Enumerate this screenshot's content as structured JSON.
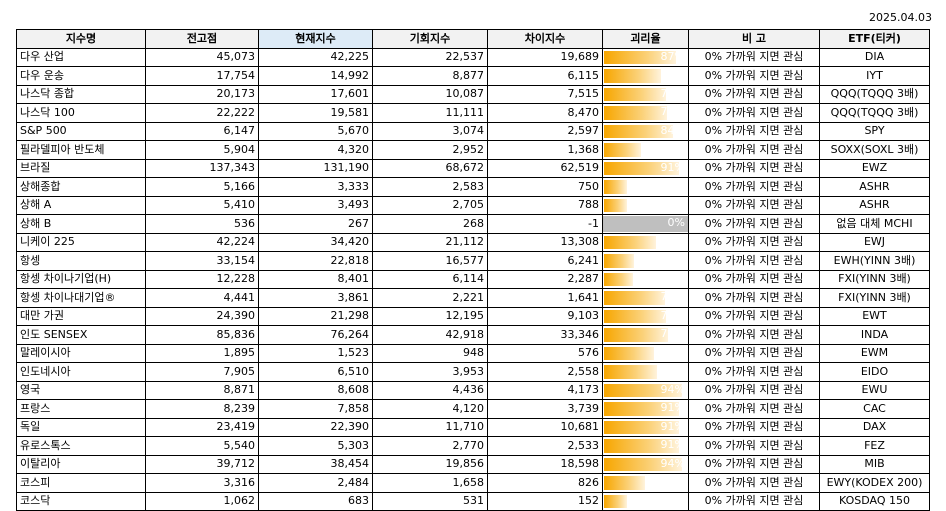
{
  "date": "2025.04.03",
  "headers": [
    "지수명",
    "전고점",
    "현재지수",
    "기회지수",
    "차이지수",
    "괴리율",
    "비 고",
    "ETF(티커)"
  ],
  "rows": [
    {
      "name": "다우 산업",
      "prev_high": "45,073",
      "current": "42,225",
      "opportunity": "22,537",
      "diff": "19,689",
      "gap": "87%",
      "gap_value": 0.87,
      "note": "0% 가까워 지면 관심",
      "etf": "DIA"
    },
    {
      "name": "다우 운송",
      "prev_high": "17,754",
      "current": "14,992",
      "opportunity": "8,877",
      "diff": "6,115",
      "gap": "69%",
      "gap_value": 0.69,
      "note": "0% 가까워 지면 관심",
      "etf": "IYT"
    },
    {
      "name": "나스닥 종합",
      "prev_high": "20,173",
      "current": "17,601",
      "opportunity": "10,087",
      "diff": "7,515",
      "gap": "75%",
      "gap_value": 0.75,
      "note": "0% 가까워 지면 관심",
      "etf": "QQQ(TQQQ 3배)"
    },
    {
      "name": "나스닥 100",
      "prev_high": "22,222",
      "current": "19,581",
      "opportunity": "11,111",
      "diff": "8,470",
      "gap": "76%",
      "gap_value": 0.76,
      "note": "0% 가까워 지면 관심",
      "etf": "QQQ(TQQQ 3배)"
    },
    {
      "name": "S&P 500",
      "prev_high": "6,147",
      "current": "5,670",
      "opportunity": "3,074",
      "diff": "2,597",
      "gap": "84%",
      "gap_value": 0.84,
      "note": "0% 가까워 지면 관심",
      "etf": "SPY"
    },
    {
      "name": "필라델피아 반도체",
      "prev_high": "5,904",
      "current": "4,320",
      "opportunity": "2,952",
      "diff": "1,368",
      "gap": "46%",
      "gap_value": 0.46,
      "note": "0% 가까워 지면 관심",
      "etf": "SOXX(SOXL 3배)"
    },
    {
      "name": "브라질",
      "prev_high": "137,343",
      "current": "131,190",
      "opportunity": "68,672",
      "diff": "62,519",
      "gap": "91%",
      "gap_value": 0.91,
      "note": "0% 가까워 지면 관심",
      "etf": "EWZ"
    },
    {
      "name": "상해종합",
      "prev_high": "5,166",
      "current": "3,333",
      "opportunity": "2,583",
      "diff": "750",
      "gap": "29%",
      "gap_value": 0.29,
      "note": "0% 가까워 지면 관심",
      "etf": "ASHR"
    },
    {
      "name": "상해 A",
      "prev_high": "5,410",
      "current": "3,493",
      "opportunity": "2,705",
      "diff": "788",
      "gap": "29%",
      "gap_value": 0.29,
      "note": "0% 가까워 지면 관심",
      "etf": "ASHR"
    },
    {
      "name": "상해 B",
      "prev_high": "536",
      "current": "267",
      "opportunity": "268",
      "diff": "-1",
      "gap": "0%",
      "gap_value": 0,
      "note": "0% 가까워 지면 관심",
      "etf": "없음 대체 MCHI"
    },
    {
      "name": "니케이 225",
      "prev_high": "42,224",
      "current": "34,420",
      "opportunity": "21,112",
      "diff": "13,308",
      "gap": "63%",
      "gap_value": 0.63,
      "note": "0% 가까워 지면 관심",
      "etf": "EWJ"
    },
    {
      "name": "항셍",
      "prev_high": "33,154",
      "current": "22,818",
      "opportunity": "16,577",
      "diff": "6,241",
      "gap": "38%",
      "gap_value": 0.38,
      "note": "0% 가까워 지면 관심",
      "etf": "EWH(YINN 3배)"
    },
    {
      "name": "항셍 차이나기업(H)",
      "prev_high": "12,228",
      "current": "8,401",
      "opportunity": "6,114",
      "diff": "2,287",
      "gap": "37%",
      "gap_value": 0.37,
      "note": "0% 가까워 지면 관심",
      "etf": "FXI(YINN 3배)"
    },
    {
      "name": "항셍 차이나대기업®",
      "prev_high": "4,441",
      "current": "3,861",
      "opportunity": "2,221",
      "diff": "1,641",
      "gap": "74%",
      "gap_value": 0.74,
      "note": "0% 가까워 지면 관심",
      "etf": "FXI(YINN 3배)"
    },
    {
      "name": "대만 가권",
      "prev_high": "24,390",
      "current": "21,298",
      "opportunity": "12,195",
      "diff": "9,103",
      "gap": "75%",
      "gap_value": 0.75,
      "note": "0% 가까워 지면 관심",
      "etf": "EWT"
    },
    {
      "name": "인도 SENSEX",
      "prev_high": "85,836",
      "current": "76,264",
      "opportunity": "42,918",
      "diff": "33,346",
      "gap": "78%",
      "gap_value": 0.78,
      "note": "0% 가까워 지면 관심",
      "etf": "INDA"
    },
    {
      "name": "말레이시아",
      "prev_high": "1,895",
      "current": "1,523",
      "opportunity": "948",
      "diff": "576",
      "gap": "61%",
      "gap_value": 0.61,
      "note": "0% 가까워 지면 관심",
      "etf": "EWM"
    },
    {
      "name": "인도네시아",
      "prev_high": "7,905",
      "current": "6,510",
      "opportunity": "3,953",
      "diff": "2,558",
      "gap": "65%",
      "gap_value": 0.65,
      "note": "0% 가까워 지면 관심",
      "etf": "EIDO"
    },
    {
      "name": "영국",
      "prev_high": "8,871",
      "current": "8,608",
      "opportunity": "4,436",
      "diff": "4,173",
      "gap": "94%",
      "gap_value": 0.94,
      "note": "0% 가까워 지면 관심",
      "etf": "EWU"
    },
    {
      "name": "프랑스",
      "prev_high": "8,239",
      "current": "7,858",
      "opportunity": "4,120",
      "diff": "3,739",
      "gap": "91%",
      "gap_value": 0.91,
      "note": "0% 가까워 지면 관심",
      "etf": "CAC"
    },
    {
      "name": "독일",
      "prev_high": "23,419",
      "current": "22,390",
      "opportunity": "11,710",
      "diff": "10,681",
      "gap": "91%",
      "gap_value": 0.91,
      "note": "0% 가까워 지면 관심",
      "etf": "DAX"
    },
    {
      "name": "유로스톡스",
      "prev_high": "5,540",
      "current": "5,303",
      "opportunity": "2,770",
      "diff": "2,533",
      "gap": "91%",
      "gap_value": 0.91,
      "note": "0% 가까워 지면 관심",
      "etf": "FEZ"
    },
    {
      "name": "이탈리아",
      "prev_high": "39,712",
      "current": "38,454",
      "opportunity": "19,856",
      "diff": "18,598",
      "gap": "94%",
      "gap_value": 0.94,
      "note": "0% 가까워 지면 관심",
      "etf": "MIB"
    },
    {
      "name": "코스피",
      "prev_high": "3,316",
      "current": "2,484",
      "opportunity": "1,658",
      "diff": "826",
      "gap": "50%",
      "gap_value": 0.5,
      "note": "0% 가까워 지면 관심",
      "etf": "EWY(KODEX 200)"
    },
    {
      "name": "코스닥",
      "prev_high": "1,062",
      "current": "683",
      "opportunity": "531",
      "diff": "152",
      "gap": "29%",
      "gap_value": 0.29,
      "note": "0% 가까워 지면 관심",
      "etf": "KOSDAQ 150"
    }
  ]
}
